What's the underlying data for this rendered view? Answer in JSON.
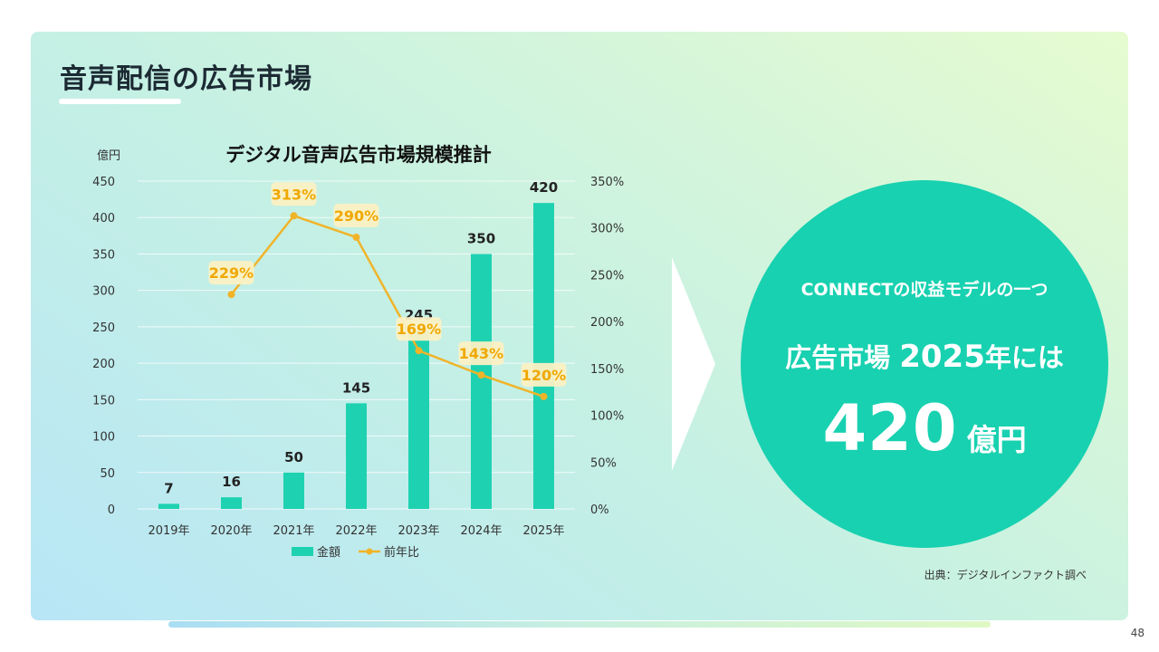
{
  "page": {
    "title": "音声配信の広告市場",
    "page_number": "48",
    "source_note": "出典：デジタルインファクト調べ"
  },
  "highlight": {
    "subtitle": "CONNECTの収益モデルの一つ",
    "headline_prefix": "広告市場 ",
    "headline_year": "2025",
    "headline_suffix": "年には",
    "amount": "420",
    "amount_unit": "億円"
  },
  "colors": {
    "bar": "#1ed2b1",
    "line": "#f0b429",
    "pct_label": "#f0a800",
    "pct_label_bg": "#fbf0c4",
    "circle": "#18d1b0"
  },
  "chart_data": {
    "type": "bar",
    "title": "デジタル音声広告市場規模推計",
    "ylabel": "億円",
    "categories": [
      "2019年",
      "2020年",
      "2021年",
      "2022年",
      "2023年",
      "2024年",
      "2025年"
    ],
    "ylim": [
      0,
      450
    ],
    "y_ticks": [
      "0",
      "50",
      "100",
      "150",
      "200",
      "250",
      "300",
      "350",
      "400",
      "450"
    ],
    "y2lim": [
      0,
      350
    ],
    "y2_ticks": [
      "0%",
      "50%",
      "100%",
      "150%",
      "200%",
      "250%",
      "300%",
      "350%"
    ],
    "grid": true,
    "legend_position": "bottom",
    "series": [
      {
        "name": "金額",
        "type": "bar",
        "values": [
          7,
          16,
          50,
          145,
          245,
          350,
          420
        ],
        "labels": [
          "7",
          "16",
          "50",
          "145",
          "245",
          "350",
          "420"
        ]
      },
      {
        "name": "前年比",
        "type": "line",
        "axis": "right",
        "values": [
          null,
          229,
          313,
          290,
          169,
          143,
          120
        ],
        "labels": [
          null,
          "229%",
          "313%",
          "290%",
          "169%",
          "143%",
          "120%"
        ]
      }
    ]
  }
}
